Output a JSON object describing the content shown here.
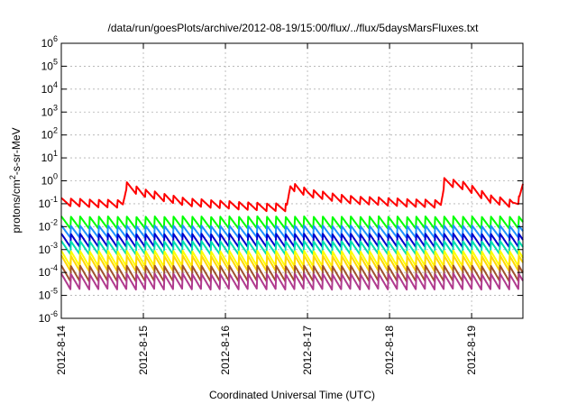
{
  "chart_data": {
    "type": "line",
    "title": "/data/run/goesPlots/archive/2012-08-19/15:00/flux/../flux/5daysMarsFluxes.txt",
    "xlabel": "Coordinated Universal Time (UTC)",
    "ylabel": "protons/cm2-s-sr-MeV",
    "yscale": "log",
    "ylim": [
      1e-06,
      1000000.0
    ],
    "yticks": [
      {
        "base": "10",
        "exp": "-6"
      },
      {
        "base": "10",
        "exp": "-5"
      },
      {
        "base": "10",
        "exp": "-4"
      },
      {
        "base": "10",
        "exp": "-3"
      },
      {
        "base": "10",
        "exp": "-2"
      },
      {
        "base": "10",
        "exp": "-1"
      },
      {
        "base": "10",
        "exp": "0"
      },
      {
        "base": "10",
        "exp": "1"
      },
      {
        "base": "10",
        "exp": "2"
      },
      {
        "base": "10",
        "exp": "3"
      },
      {
        "base": "10",
        "exp": "4"
      },
      {
        "base": "10",
        "exp": "5"
      },
      {
        "base": "10",
        "exp": "6"
      }
    ],
    "xlim": [
      "2012-08-14T00:00",
      "2012-08-19T15:00"
    ],
    "xticks": [
      "2012-8-14",
      "2012-8-15",
      "2012-8-16",
      "2012-8-17",
      "2012-8-18",
      "2012-8-19"
    ],
    "grid": true,
    "sawtooth_period_hours": 2.73,
    "series": [
      {
        "color": "#ff0000",
        "dates": [
          "2012-08-14T00:00",
          "2012-08-14T12:00",
          "2012-08-14T18:00",
          "2012-08-14T19:00",
          "2012-08-15T00:00",
          "2012-08-15T12:00",
          "2012-08-16T00:00",
          "2012-08-16T12:00",
          "2012-08-16T18:00",
          "2012-08-16T19:00",
          "2012-08-17T00:00",
          "2012-08-17T12:00",
          "2012-08-18T00:00",
          "2012-08-18T12:00",
          "2012-08-18T15:00",
          "2012-08-18T16:00",
          "2012-08-18T22:00",
          "2012-08-19T06:00",
          "2012-08-19T12:00",
          "2012-08-19T14:00",
          "2012-08-19T15:00"
        ],
        "values": [
          0.12,
          0.1,
          0.1,
          0.6,
          0.3,
          0.12,
          0.09,
          0.07,
          0.07,
          0.6,
          0.3,
          0.15,
          0.12,
          0.1,
          0.1,
          0.9,
          0.6,
          0.15,
          0.1,
          0.15,
          0.7
        ],
        "sawtooth_amp": 0.35
      },
      {
        "color": "#00ff00",
        "dates": [
          "2012-08-14T00:00",
          "2012-08-19T15:00"
        ],
        "values": [
          0.015,
          0.015
        ],
        "sawtooth_amp": 0.55
      },
      {
        "color": "#1e90ff",
        "dates": [
          "2012-08-14T00:00",
          "2012-08-19T15:00"
        ],
        "values": [
          0.006,
          0.006
        ],
        "sawtooth_amp": 0.55
      },
      {
        "color": "#0000cd",
        "dates": [
          "2012-08-14T00:00",
          "2012-08-19T15:00"
        ],
        "values": [
          0.0025,
          0.0025
        ],
        "sawtooth_amp": 0.6
      },
      {
        "color": "#00e0b0",
        "dates": [
          "2012-08-14T00:00",
          "2012-08-19T15:00"
        ],
        "values": [
          0.0012,
          0.0012
        ],
        "sawtooth_amp": 0.6
      },
      {
        "color": "#ffff00",
        "dates": [
          "2012-08-14T00:00",
          "2012-08-19T15:00"
        ],
        "values": [
          0.0004,
          0.0004
        ],
        "sawtooth_amp": 0.7
      },
      {
        "color": "#ffd700",
        "dates": [
          "2012-08-14T00:00",
          "2012-08-19T15:00"
        ],
        "values": [
          0.00025,
          0.00025
        ],
        "sawtooth_amp": 0.7
      },
      {
        "color": "#a0522d",
        "dates": [
          "2012-08-14T00:00",
          "2012-08-19T15:00"
        ],
        "values": [
          9e-05,
          9e-05
        ],
        "sawtooth_amp": 0.7
      },
      {
        "color": "#b03a8e",
        "dates": [
          "2012-08-14T00:00",
          "2012-08-19T15:00"
        ],
        "values": [
          4e-05,
          4e-05
        ],
        "sawtooth_amp": 0.7
      }
    ]
  }
}
